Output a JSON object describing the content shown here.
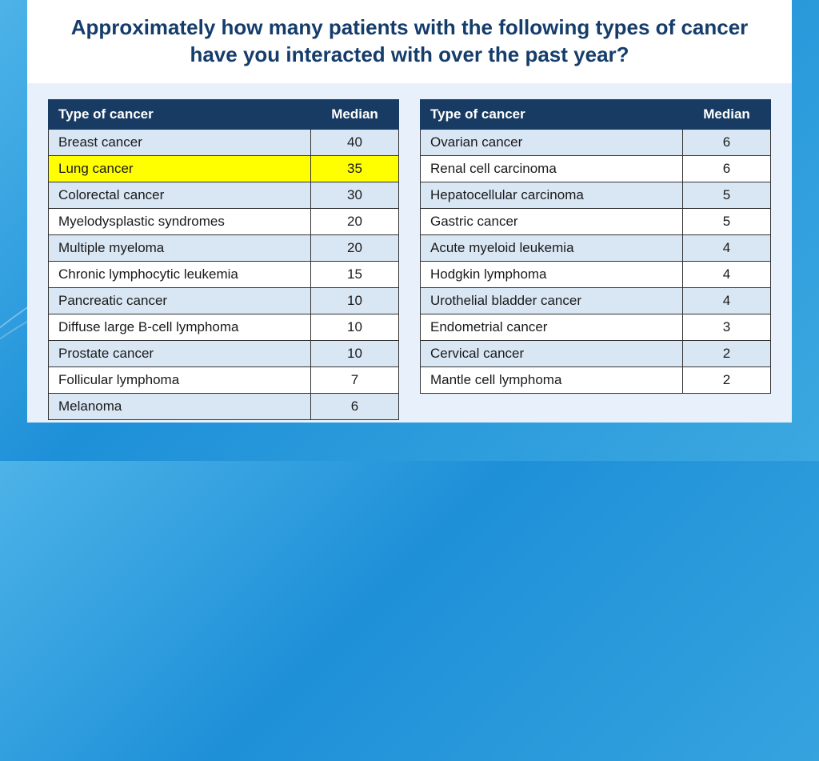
{
  "title": "Approximately how many patients with the following types of cancer have you interacted with over the past year?",
  "columns": {
    "type": "Type of cancer",
    "median": "Median"
  },
  "left_rows": [
    {
      "type": "Breast cancer",
      "median": 40,
      "style": "alt"
    },
    {
      "type": "Lung cancer",
      "median": 35,
      "style": "hl"
    },
    {
      "type": "Colorectal cancer",
      "median": 30,
      "style": "alt"
    },
    {
      "type": "Myelodysplastic syndromes",
      "median": 20,
      "style": "norm"
    },
    {
      "type": "Multiple myeloma",
      "median": 20,
      "style": "alt"
    },
    {
      "type": "Chronic lymphocytic leukemia",
      "median": 15,
      "style": "norm"
    },
    {
      "type": "Pancreatic cancer",
      "median": 10,
      "style": "alt"
    },
    {
      "type": "Diffuse large B-cell lymphoma",
      "median": 10,
      "style": "norm"
    },
    {
      "type": "Prostate cancer",
      "median": 10,
      "style": "alt"
    },
    {
      "type": "Follicular lymphoma",
      "median": 7,
      "style": "norm"
    },
    {
      "type": "Melanoma",
      "median": 6,
      "style": "alt"
    }
  ],
  "right_rows": [
    {
      "type": "Ovarian cancer",
      "median": 6,
      "style": "alt"
    },
    {
      "type": "Renal cell carcinoma",
      "median": 6,
      "style": "norm"
    },
    {
      "type": "Hepatocellular carcinoma",
      "median": 5,
      "style": "alt"
    },
    {
      "type": "Gastric cancer",
      "median": 5,
      "style": "norm"
    },
    {
      "type": "Acute myeloid leukemia",
      "median": 4,
      "style": "alt"
    },
    {
      "type": "Hodgkin lymphoma",
      "median": 4,
      "style": "norm"
    },
    {
      "type": "Urothelial bladder cancer",
      "median": 4,
      "style": "alt"
    },
    {
      "type": "Endometrial cancer",
      "median": 3,
      "style": "norm"
    },
    {
      "type": "Cervical cancer",
      "median": 2,
      "style": "alt"
    },
    {
      "type": "Mantle cell lymphoma",
      "median": 2,
      "style": "norm"
    }
  ],
  "styling": {
    "header_bg": "#183b63",
    "header_fg": "#ffffff",
    "alt_bg": "#d9e6f4",
    "norm_bg": "#ffffff",
    "hl_bg": "#ffff00",
    "border_color": "#333333",
    "title_color": "#153d6b",
    "title_fontsize": 26,
    "body_fontsize": 17,
    "panel_bg": "#e8f1fb",
    "page_gradient": [
      "#4db3e8",
      "#1e90d8",
      "#3ca8e0"
    ]
  }
}
